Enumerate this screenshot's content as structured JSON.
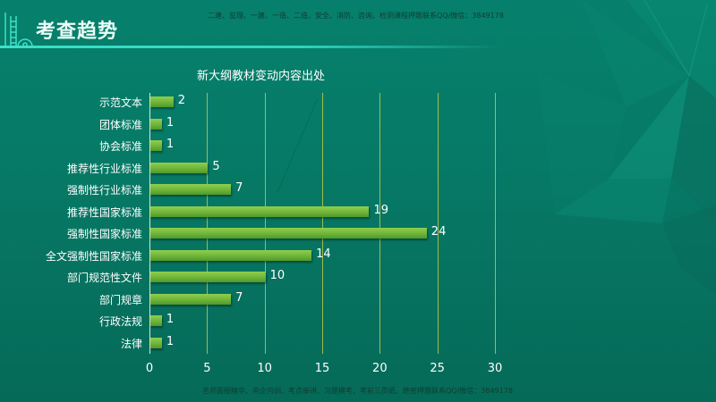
{
  "header": {
    "title": "考查趋势",
    "logo_icon": "ladder-building-icon"
  },
  "watermarks": {
    "top": "二建、监理、一建、一造、二造、安全、消防、咨询、检测课程押题联系QQ/微信：3849178",
    "bottom": "名师面授精华、央企内训、考点串讲、习题模考、考前三页纸、绝密押题联系QQ/微信：3849178"
  },
  "colors": {
    "background": "#067a66",
    "bar": "#7cc244",
    "gridline": "#b9c94a",
    "header_line": "#3de0c8"
  },
  "chart_data": {
    "type": "bar",
    "orientation": "horizontal",
    "title": "新大纲教材变动内容出处",
    "xlabel": "",
    "ylabel": "",
    "categories": [
      "示范文本",
      "团体标准",
      "协会标准",
      "推荐性行业标准",
      "强制性行业标准",
      "推荐性国家标准",
      "强制性国家标准",
      "全文强制性国家标准",
      "部门规范性文件",
      "部门规章",
      "行政法规",
      "法律"
    ],
    "values": [
      2,
      1,
      1,
      5,
      7,
      19,
      24,
      14,
      10,
      7,
      1,
      1
    ],
    "xlim": [
      0,
      30
    ],
    "xticks": [
      0,
      5,
      10,
      15,
      20,
      25,
      30
    ],
    "xtick_labels": [
      "0",
      "5",
      "10",
      "15",
      "20",
      "25",
      "30"
    ],
    "grid": "vertical",
    "data_labels": true,
    "legend": "none"
  }
}
